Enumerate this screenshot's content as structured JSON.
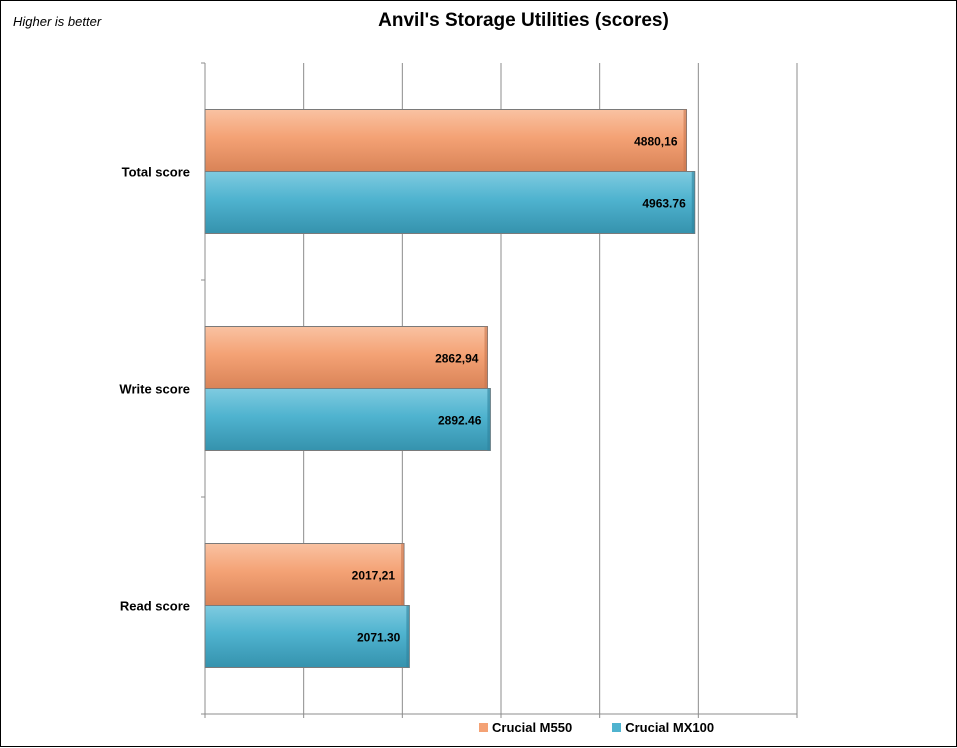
{
  "chart_data": {
    "type": "bar",
    "orientation": "horizontal",
    "title": "Anvil's Storage Utilities (scores)",
    "note": "Higher is better",
    "categories": [
      "Total score",
      "Write score",
      "Read score"
    ],
    "series": [
      {
        "name": "Crucial M550",
        "color": "#f4a275",
        "values": [
          4880.16,
          2862.94,
          2017.21
        ],
        "labels": [
          "4880,16",
          "2862,94",
          "2017,21"
        ]
      },
      {
        "name": "Crucial MX100",
        "color": "#4fb3cf",
        "values": [
          4963.76,
          2892.46,
          2071.3
        ],
        "labels": [
          "4963.76",
          "2892.46",
          "2071.30"
        ]
      }
    ],
    "xlim": [
      0,
      6000
    ],
    "xgrid_step": 1000,
    "grid": true,
    "legend": "bottom"
  }
}
